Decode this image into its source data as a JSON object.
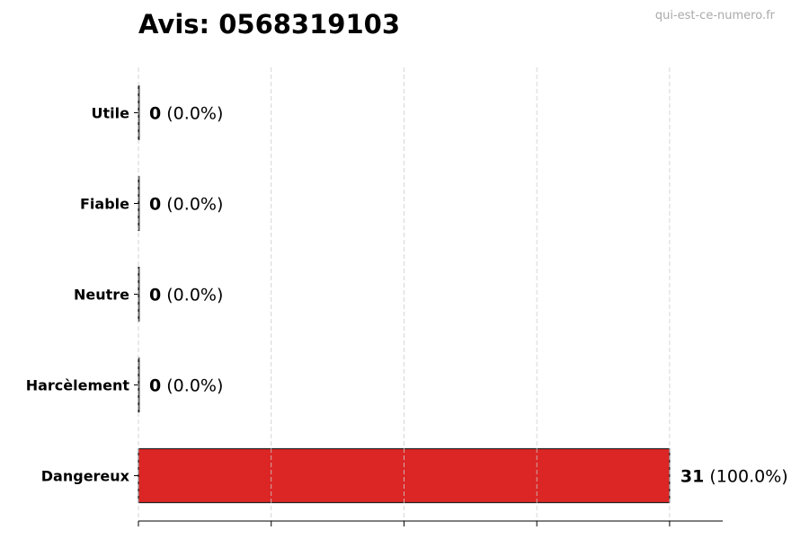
{
  "chart_data": {
    "type": "bar",
    "orientation": "horizontal",
    "title": "Avis: 0568319103",
    "watermark": "qui-est-ce-numero.fr",
    "categories": [
      "Utile",
      "Fiable",
      "Neutre",
      "Harcèlement",
      "Dangereux"
    ],
    "values": [
      0,
      0,
      0,
      0,
      31
    ],
    "value_labels": [
      "0",
      "0",
      "0",
      "0",
      "31"
    ],
    "percent_labels": [
      "(0.0%)",
      "(0.0%)",
      "(0.0%)",
      "(0.0%)",
      "(100.0%)"
    ],
    "colors": [
      "#dc2626",
      "#dc2626",
      "#dc2626",
      "#dc2626",
      "#dc2626"
    ],
    "xlim": [
      0,
      34.1
    ],
    "xticks": [
      0,
      7.75,
      15.5,
      23.25,
      31
    ],
    "xtick_labels_shown": false,
    "grid": "x-dashed",
    "xlabel": "",
    "ylabel": ""
  }
}
